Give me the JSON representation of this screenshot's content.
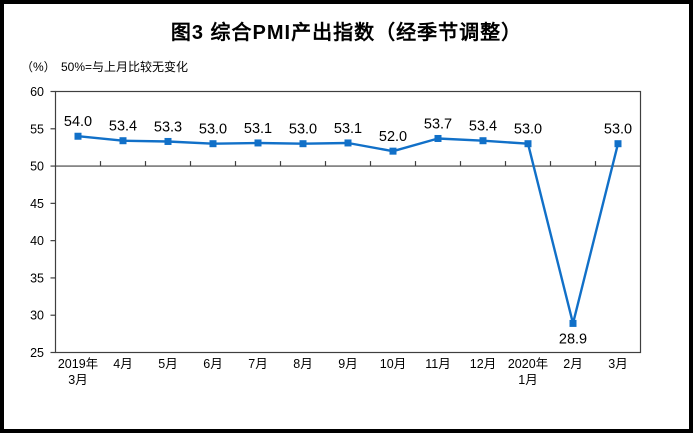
{
  "chart_data": {
    "type": "line",
    "title": "图3 综合PMI产出指数（经季节调整）",
    "unit_label": "（%）",
    "note": "50%=与上月比较无变化",
    "categories": [
      [
        "2019年",
        "3月"
      ],
      [
        "4月"
      ],
      [
        "5月"
      ],
      [
        "6月"
      ],
      [
        "7月"
      ],
      [
        "8月"
      ],
      [
        "9月"
      ],
      [
        "10月"
      ],
      [
        "11月"
      ],
      [
        "12月"
      ],
      [
        "2020年",
        "1月"
      ],
      [
        "2月"
      ],
      [
        "3月"
      ]
    ],
    "values": [
      54.0,
      53.4,
      53.3,
      53.0,
      53.1,
      53.0,
      53.1,
      52.0,
      53.7,
      53.4,
      53.0,
      28.9,
      53.0
    ],
    "data_labels": [
      "54.0",
      "53.4",
      "53.3",
      "53.0",
      "53.1",
      "53.0",
      "53.1",
      "52.0",
      "53.7",
      "53.4",
      "53.0",
      "28.9",
      "53.0"
    ],
    "label_below_index": 11,
    "ylim": [
      25,
      60
    ],
    "ytick_step": 5,
    "ytick_labels": [
      "25",
      "30",
      "35",
      "40",
      "45",
      "50",
      "55",
      "60"
    ],
    "reference_line": 50,
    "grid": false,
    "legend": "none",
    "colors": {
      "series": "#1170C8",
      "axis": "#3f3f3f",
      "text": "#000000",
      "frame": "#000000"
    }
  }
}
